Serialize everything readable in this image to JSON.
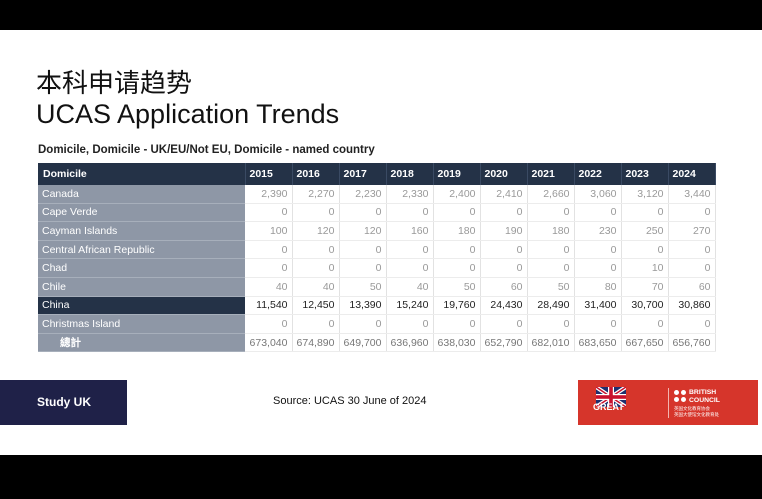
{
  "title_zh": "本科申请趋势",
  "title_en": "UCAS Application Trends",
  "subtitle": "Domicile, Domicile - UK/EU/Not EU, Domicile - named country",
  "table": {
    "header": "Domicile",
    "years": [
      "2015",
      "2016",
      "2017",
      "2018",
      "2019",
      "2020",
      "2021",
      "2022",
      "2023",
      "2024"
    ],
    "rows": [
      {
        "name": "Canada",
        "values": [
          "2,390",
          "2,270",
          "2,230",
          "2,330",
          "2,400",
          "2,410",
          "2,660",
          "3,060",
          "3,120",
          "3,440"
        ]
      },
      {
        "name": "Cape Verde",
        "values": [
          "0",
          "0",
          "0",
          "0",
          "0",
          "0",
          "0",
          "0",
          "0",
          "0"
        ]
      },
      {
        "name": "Cayman Islands",
        "values": [
          "100",
          "120",
          "120",
          "160",
          "180",
          "190",
          "180",
          "230",
          "250",
          "270"
        ]
      },
      {
        "name": "Central African Republic",
        "values": [
          "0",
          "0",
          "0",
          "0",
          "0",
          "0",
          "0",
          "0",
          "0",
          "0"
        ]
      },
      {
        "name": "Chad",
        "values": [
          "0",
          "0",
          "0",
          "0",
          "0",
          "0",
          "0",
          "0",
          "10",
          "0"
        ]
      },
      {
        "name": "Chile",
        "values": [
          "40",
          "40",
          "50",
          "40",
          "50",
          "60",
          "50",
          "80",
          "70",
          "60"
        ]
      },
      {
        "name": "China",
        "values": [
          "11,540",
          "12,450",
          "13,390",
          "15,240",
          "19,760",
          "24,430",
          "28,490",
          "31,400",
          "30,700",
          "30,860"
        ]
      },
      {
        "name": "Christmas Island",
        "values": [
          "0",
          "0",
          "0",
          "0",
          "0",
          "0",
          "0",
          "0",
          "0",
          "0"
        ]
      }
    ],
    "total": {
      "name": "總計",
      "values": [
        "673,040",
        "674,890",
        "649,700",
        "636,960",
        "638,030",
        "652,790",
        "682,010",
        "683,650",
        "667,650",
        "656,760"
      ]
    }
  },
  "footer": {
    "study_uk": "Study UK",
    "source": "Source: UCAS 30 June of 2024",
    "great": "GREAT",
    "bc_name_1": "BRITISH",
    "bc_name_2": "COUNCIL",
    "bc_sub_1": "英国文化教育协会",
    "bc_sub_2": "英国大使馆文化教育处"
  },
  "colors": {
    "header_bg": "#243247",
    "name_bg": "#8e97a6",
    "study_uk_bg": "#1f2148",
    "partner_bg": "#d6352b"
  }
}
